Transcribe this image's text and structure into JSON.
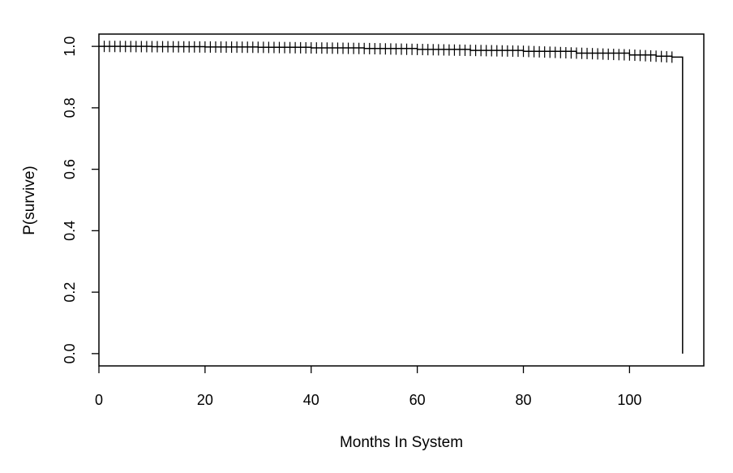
{
  "chart_data": {
    "type": "line",
    "subtype": "kaplan-meier-survival-curve",
    "title": "",
    "xlabel": "Months In System",
    "ylabel": "P(survive)",
    "xlim": [
      0,
      114
    ],
    "ylim": [
      -0.04,
      1.04
    ],
    "x_ticks": [
      0,
      20,
      40,
      60,
      80,
      100
    ],
    "y_ticks": [
      0.0,
      0.2,
      0.4,
      0.6,
      0.8,
      1.0
    ],
    "x_tick_labels": [
      "0",
      "20",
      "40",
      "60",
      "80",
      "100"
    ],
    "y_tick_labels": [
      "0.0",
      "0.2",
      "0.4",
      "0.6",
      "0.8",
      "1.0"
    ],
    "grid": false,
    "legend": "none",
    "series": [
      {
        "x": [
          0,
          10,
          20,
          30,
          40,
          50,
          60,
          70,
          80,
          90,
          100,
          105,
          108,
          110,
          110
        ],
        "y": [
          1.0,
          0.999,
          0.998,
          0.997,
          0.995,
          0.993,
          0.99,
          0.987,
          0.984,
          0.978,
          0.972,
          0.968,
          0.965,
          0.965,
          0.0
        ],
        "censor_marks": {
          "x_start": 1,
          "x_end": 108,
          "step": 1
        }
      }
    ],
    "line_color": "#000000"
  }
}
